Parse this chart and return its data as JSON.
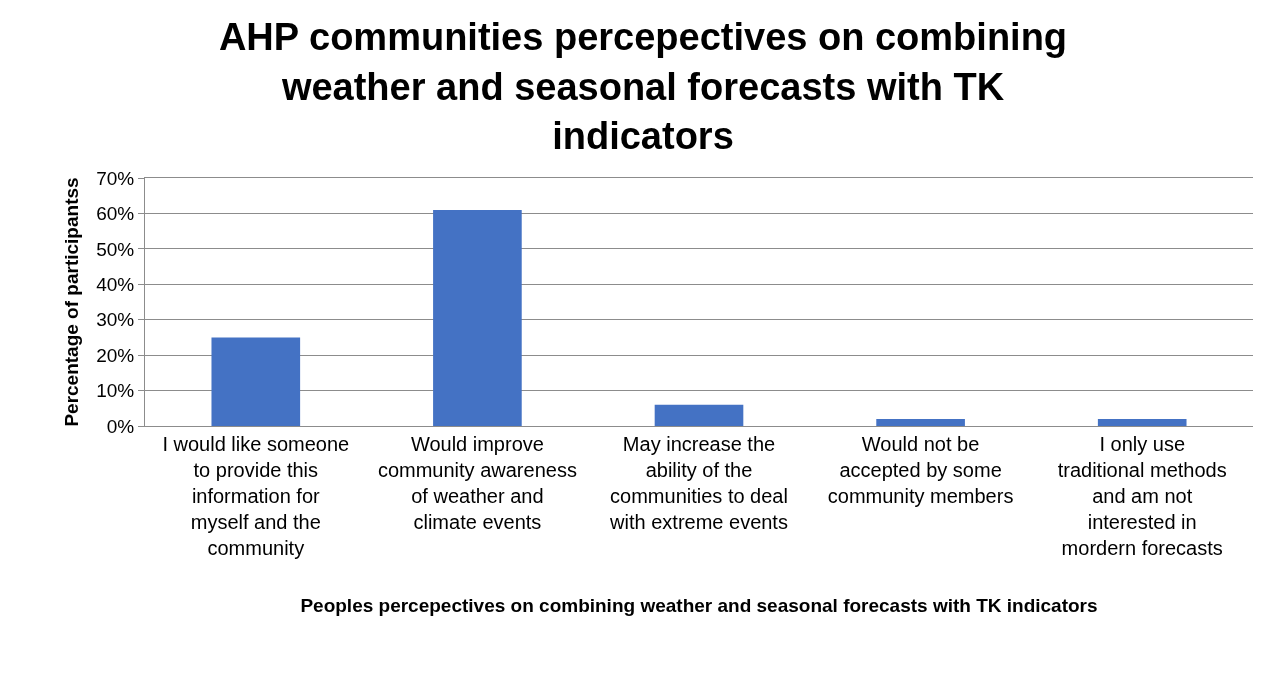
{
  "chart_data": {
    "type": "bar",
    "title": "AHP communities percepectives on combining weather and seasonal forecasts with TK indicators",
    "xlabel": "Peoples percepectives on combining weather and seasonal forecasts with TK indicators",
    "ylabel": "Percentage of participantss",
    "categories": [
      "I would like someone to provide this information for myself and the community",
      "Would improve community awareness of weather and climate events",
      "May increase the ability of the communities to deal with extreme events",
      "Would not be accepted by some community members",
      "I only use traditional methods and am not interested in mordern forecasts"
    ],
    "values": [
      25,
      61,
      6,
      2,
      2
    ],
    "color": "#4472c4",
    "ylim": [
      0,
      70
    ],
    "yticks": [
      {
        "value": 0,
        "label": "0%"
      },
      {
        "value": 10,
        "label": "10%"
      },
      {
        "value": 20,
        "label": "20%"
      },
      {
        "value": 30,
        "label": "30%"
      },
      {
        "value": 40,
        "label": "40%"
      },
      {
        "value": 50,
        "label": "50%"
      },
      {
        "value": 60,
        "label": "60%"
      },
      {
        "value": 70,
        "label": "70%"
      }
    ],
    "grid": "y"
  }
}
